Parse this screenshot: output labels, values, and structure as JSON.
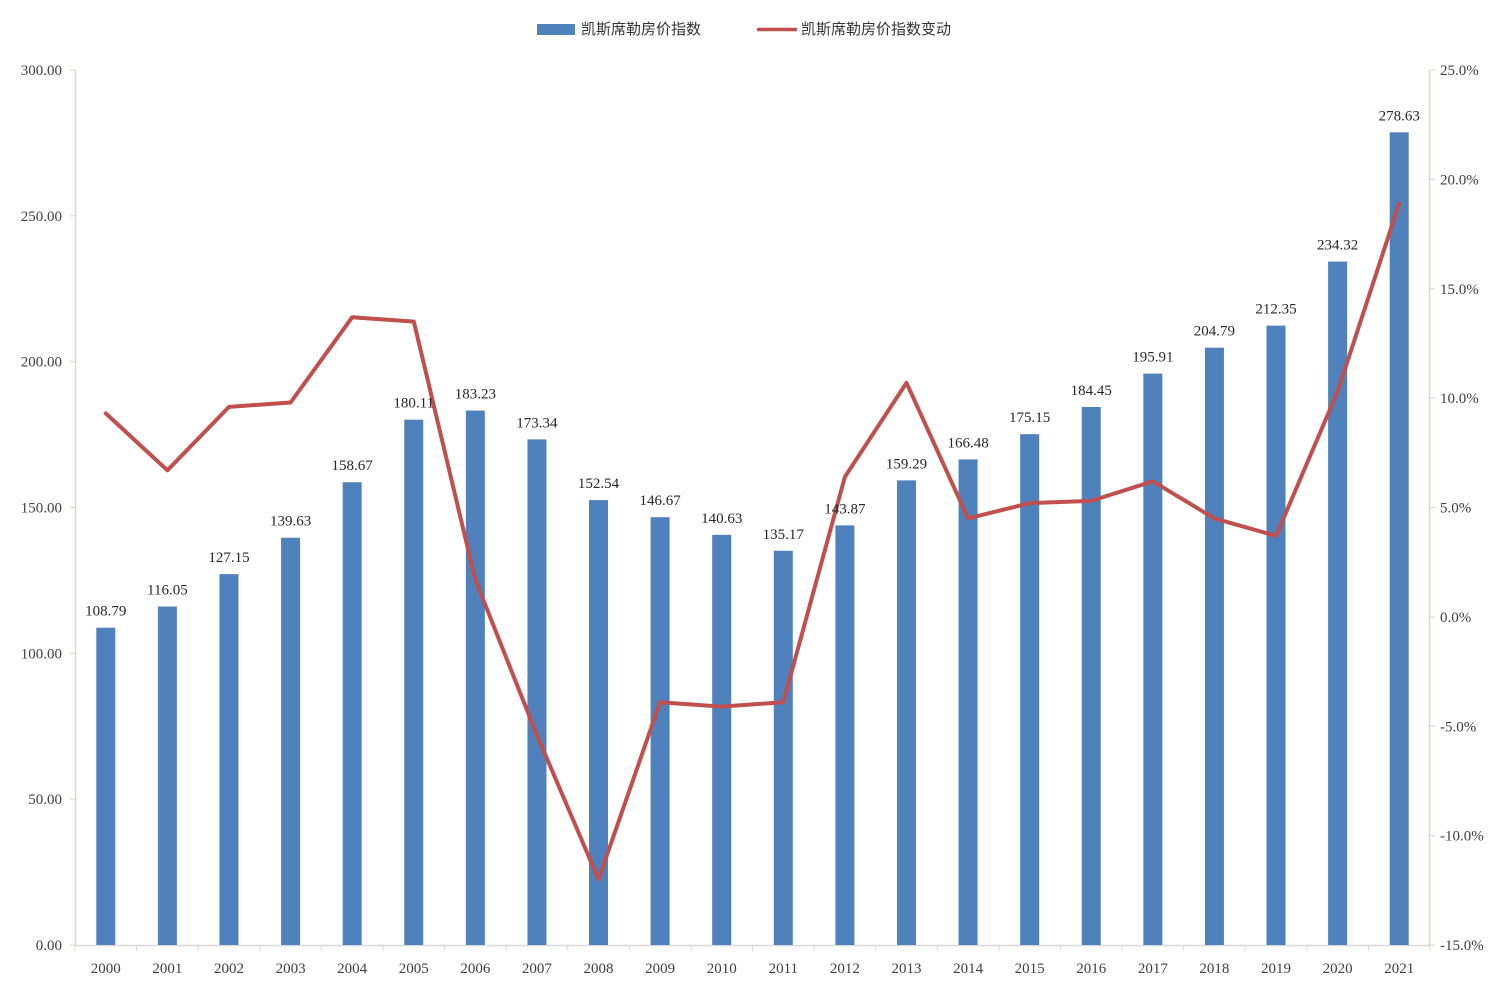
{
  "chart_data": {
    "type": "bar",
    "categories": [
      "2000",
      "2001",
      "2002",
      "2003",
      "2004",
      "2005",
      "2006",
      "2007",
      "2008",
      "2009",
      "2010",
      "2011",
      "2012",
      "2013",
      "2014",
      "2015",
      "2016",
      "2017",
      "2018",
      "2019",
      "2020",
      "2021"
    ],
    "series": [
      {
        "name": "凯斯席勒房价指数",
        "type": "bar",
        "axis": "left",
        "color": "#4F81BD",
        "values": [
          108.79,
          116.05,
          127.15,
          139.63,
          158.67,
          180.11,
          183.23,
          173.34,
          152.54,
          146.67,
          140.63,
          135.17,
          143.87,
          159.29,
          166.48,
          175.15,
          184.45,
          195.91,
          204.79,
          212.35,
          234.32,
          278.63
        ],
        "labels": [
          "108.79",
          "116.05",
          "127.15",
          "139.63",
          "158.67",
          "180.11",
          "183.23",
          "173.34",
          "152.54",
          "146.67",
          "140.63",
          "135.17",
          "143.87",
          "159.29",
          "166.48",
          "175.15",
          "184.45",
          "195.91",
          "204.79",
          "212.35",
          "234.32",
          "278.63"
        ]
      },
      {
        "name": "凯斯席勒房价指数变动",
        "type": "line",
        "axis": "right",
        "color": "#C0504D",
        "values": [
          9.3,
          6.7,
          9.6,
          9.8,
          13.7,
          13.5,
          1.7,
          -5.4,
          -12.0,
          -3.9,
          -4.1,
          -3.9,
          6.4,
          10.7,
          4.5,
          5.2,
          5.3,
          6.2,
          4.5,
          3.7,
          10.3,
          18.9
        ]
      }
    ],
    "y_left": {
      "ylim": [
        0,
        300
      ],
      "ticks": [
        0,
        50,
        100,
        150,
        200,
        250,
        300
      ],
      "tick_labels": [
        "0.00",
        "50.00",
        "100.00",
        "150.00",
        "200.00",
        "250.00",
        "300.00"
      ]
    },
    "y_right": {
      "ylim": [
        -15,
        25
      ],
      "ticks": [
        -15,
        -10,
        -5,
        0,
        5,
        10,
        15,
        20,
        25
      ],
      "tick_labels": [
        "-15.0%",
        "-10.0%",
        "-5.0%",
        "0.0%",
        "5.0%",
        "10.0%",
        "15.0%",
        "20.0%",
        "25.0%"
      ]
    },
    "grid": false,
    "legend_position": "top-center"
  }
}
